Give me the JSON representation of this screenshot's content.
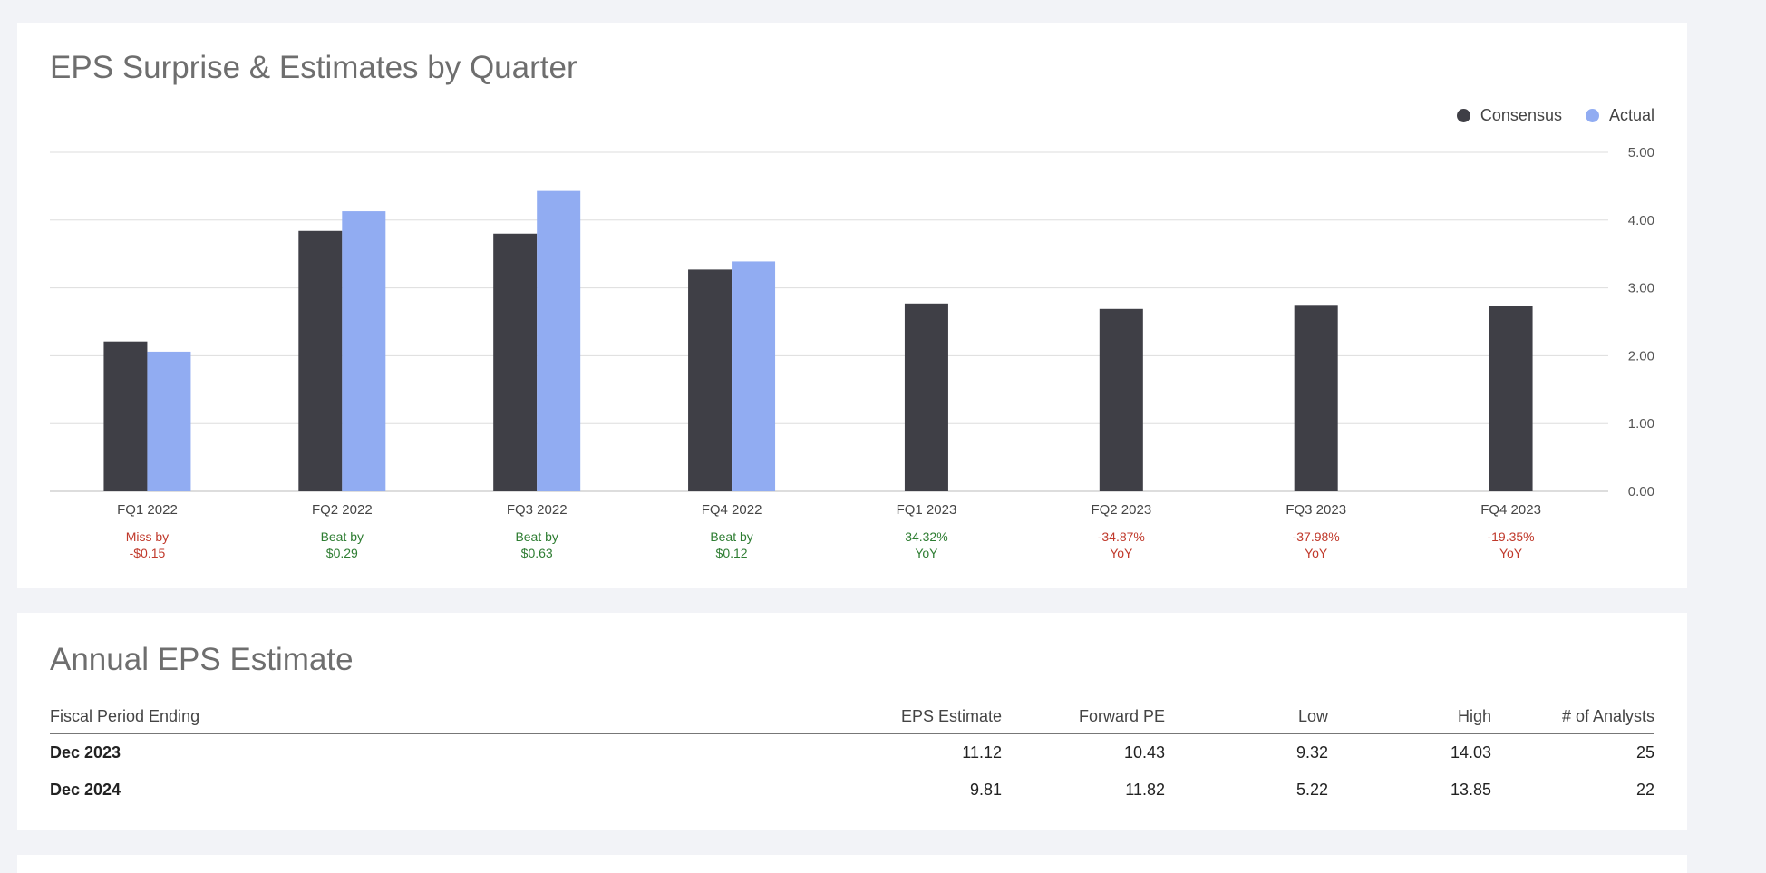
{
  "colors": {
    "consensus": "#3f3f46",
    "actual": "#91acf2",
    "beat": "#2e7d32",
    "miss": "#c0392b",
    "grid": "#dddddd"
  },
  "chart_section": {
    "title": "EPS Surprise & Estimates by Quarter",
    "legend": [
      {
        "label": "Consensus",
        "color": "#3f3f46"
      },
      {
        "label": "Actual",
        "color": "#91acf2"
      }
    ]
  },
  "chart_data": {
    "type": "bar",
    "title": "EPS Surprise & Estimates by Quarter",
    "categories": [
      "FQ1 2022",
      "FQ2 2022",
      "FQ3 2022",
      "FQ4 2022",
      "FQ1 2023",
      "FQ2 2023",
      "FQ3 2023",
      "FQ4 2023"
    ],
    "series": [
      {
        "name": "Consensus",
        "values": [
          2.21,
          3.84,
          3.8,
          3.27,
          2.77,
          2.69,
          2.75,
          2.73
        ]
      },
      {
        "name": "Actual",
        "values": [
          2.06,
          4.13,
          4.43,
          3.39,
          null,
          null,
          null,
          null
        ]
      }
    ],
    "ylim": [
      0,
      5
    ],
    "yticks": [
      "5.00",
      "4.00",
      "3.00",
      "2.00",
      "1.00",
      "0.00"
    ],
    "y_axis_side": "right",
    "grid": true,
    "legend_position": "top-right",
    "annotations": [
      {
        "line1": "Miss by",
        "line2": "-$0.15",
        "status": "miss"
      },
      {
        "line1": "Beat by",
        "line2": "$0.29",
        "status": "beat"
      },
      {
        "line1": "Beat by",
        "line2": "$0.63",
        "status": "beat"
      },
      {
        "line1": "Beat by",
        "line2": "$0.12",
        "status": "beat"
      },
      {
        "line1": "34.32%",
        "line2": "YoY",
        "status": "beat"
      },
      {
        "line1": "-34.87%",
        "line2": "YoY",
        "status": "miss"
      },
      {
        "line1": "-37.98%",
        "line2": "YoY",
        "status": "miss"
      },
      {
        "line1": "-19.35%",
        "line2": "YoY",
        "status": "miss"
      }
    ]
  },
  "annual": {
    "title": "Annual EPS Estimate",
    "headers": [
      "Fiscal Period Ending",
      "EPS Estimate",
      "Forward PE",
      "Low",
      "High",
      "# of Analysts"
    ],
    "rows": [
      [
        "Dec 2023",
        "11.12",
        "10.43",
        "9.32",
        "14.03",
        "25"
      ],
      [
        "Dec 2024",
        "9.81",
        "11.82",
        "5.22",
        "13.85",
        "22"
      ]
    ]
  }
}
